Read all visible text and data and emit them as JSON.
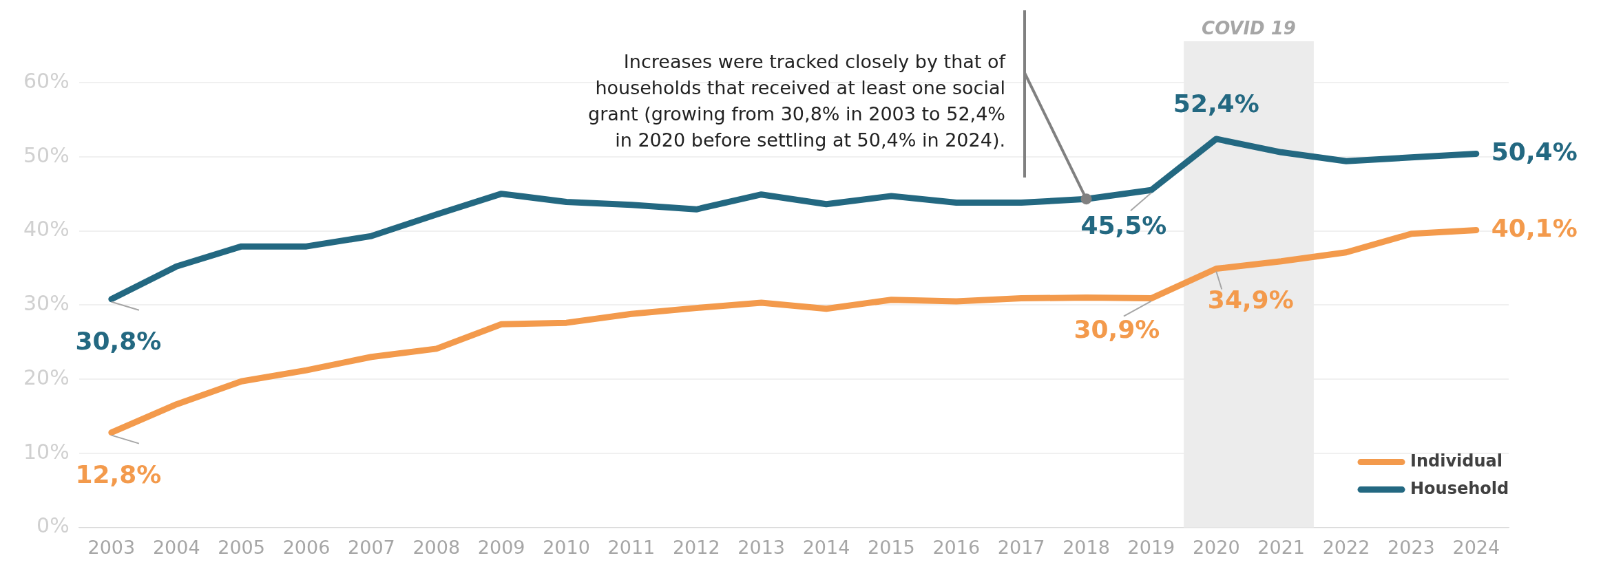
{
  "chart_data": {
    "type": "line",
    "categories": [
      "2003",
      "2004",
      "2005",
      "2006",
      "2007",
      "2008",
      "2009",
      "2010",
      "2011",
      "2012",
      "2013",
      "2014",
      "2015",
      "2016",
      "2017",
      "2018",
      "2019",
      "2020",
      "2021",
      "2022",
      "2023",
      "2024"
    ],
    "series": [
      {
        "name": "Individual",
        "color": "#f39a4c",
        "values": [
          12.8,
          16.6,
          19.7,
          21.2,
          23.0,
          24.1,
          27.4,
          27.6,
          28.8,
          29.6,
          30.3,
          29.5,
          30.7,
          30.5,
          30.9,
          31.0,
          30.9,
          34.9,
          35.9,
          37.1,
          39.6,
          40.1
        ],
        "value_labels": [
          "12,8%",
          null,
          null,
          null,
          null,
          null,
          null,
          null,
          null,
          null,
          null,
          null,
          null,
          null,
          null,
          null,
          "30,9%",
          "34,9%",
          null,
          null,
          null,
          "40,1%"
        ]
      },
      {
        "name": "Household",
        "color": "#236881",
        "values": [
          30.8,
          35.2,
          37.9,
          37.9,
          39.3,
          42.2,
          45.0,
          43.9,
          43.5,
          42.9,
          44.9,
          43.6,
          44.7,
          43.8,
          43.8,
          44.3,
          45.5,
          52.4,
          50.6,
          49.4,
          49.9,
          50.4
        ],
        "value_labels": [
          "30,8%",
          null,
          null,
          null,
          null,
          null,
          null,
          null,
          null,
          null,
          null,
          null,
          null,
          null,
          null,
          null,
          "45,5%",
          "52,4%",
          null,
          null,
          null,
          "50,4%"
        ]
      }
    ],
    "ylim": [
      0,
      60
    ],
    "yticks": [
      {
        "value": 0,
        "label": "0%"
      },
      {
        "value": 10,
        "label": "10%"
      },
      {
        "value": 20,
        "label": "20%"
      },
      {
        "value": 30,
        "label": "30%"
      },
      {
        "value": 40,
        "label": "40%"
      },
      {
        "value": 50,
        "label": "50%"
      },
      {
        "value": 60,
        "label": "60%"
      }
    ],
    "grid": "y",
    "legend": "bottom right",
    "marker": "none",
    "line_style": "solid",
    "bands": [
      {
        "axis": "x",
        "from": "2020",
        "to": "2021",
        "label": "COVID 19",
        "color": "#ececec"
      }
    ],
    "annotations": [
      {
        "text": "Increases were tracked closely by that of households that received at least one social grant (growing from 30,8% in 2003 to 52,4% in 2020 before settling at 50,4% in 2024).",
        "x": "2018",
        "y": 44.3
      }
    ]
  }
}
